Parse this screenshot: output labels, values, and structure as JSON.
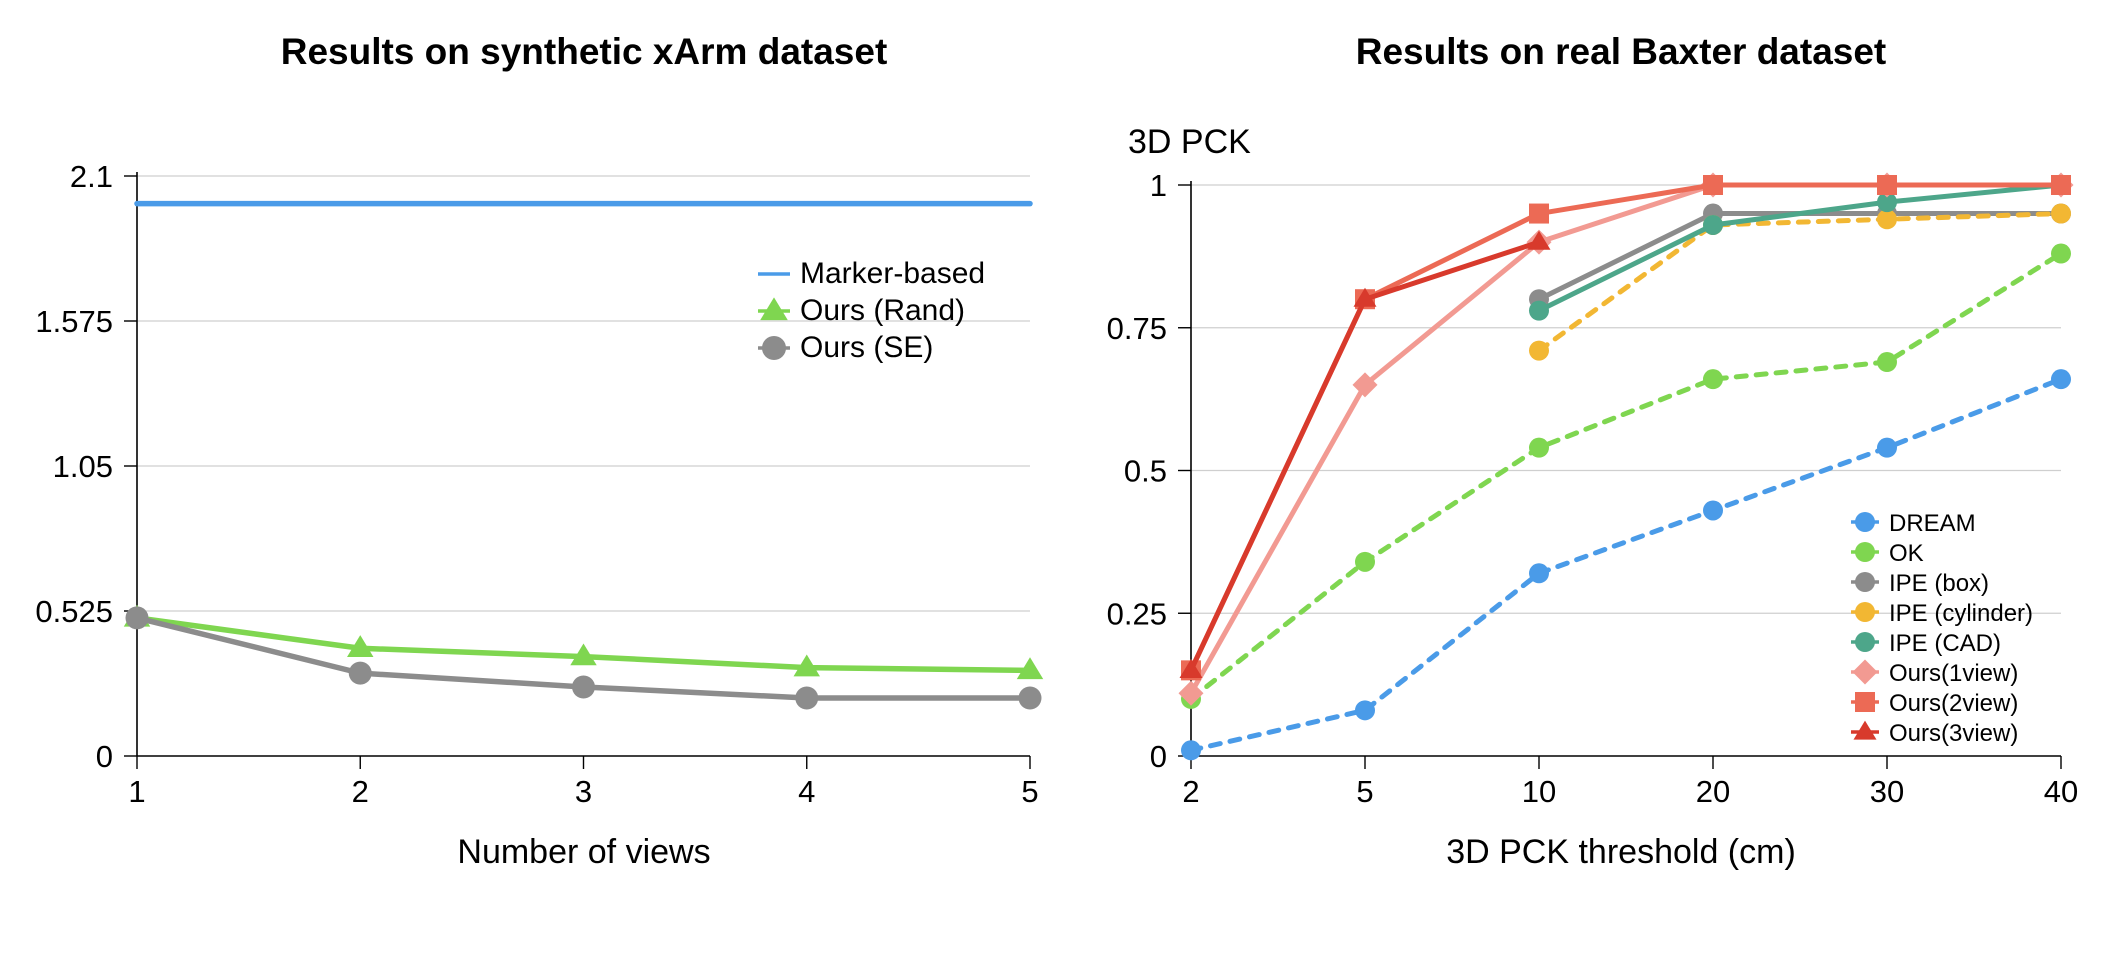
{
  "chart_data": [
    {
      "type": "line",
      "title": "Results on synthetic xArm dataset",
      "xlabel": "Number of views",
      "ylabel": "",
      "categories": [
        "1",
        "2",
        "3",
        "4",
        "5"
      ],
      "yticks": [
        "0",
        "0.525",
        "1.05",
        "1.575",
        "2.1"
      ],
      "ylim": [
        0,
        2.1
      ],
      "grid": true,
      "legend_position": "right",
      "series": [
        {
          "name": "Marker-based",
          "values": [
            2.0,
            2.0,
            2.0,
            2.0,
            2.0
          ],
          "color": "#4A9BE8",
          "marker": "none",
          "dashed": false
        },
        {
          "name": "Ours (Rand)",
          "values": [
            0.5,
            0.39,
            0.36,
            0.32,
            0.31
          ],
          "color": "#7FD650",
          "marker": "triangle",
          "dashed": false
        },
        {
          "name": "Ours (SE)",
          "values": [
            0.5,
            0.3,
            0.25,
            0.21,
            0.21
          ],
          "color": "#8C8C8C",
          "marker": "circle",
          "dashed": false
        }
      ]
    },
    {
      "type": "line",
      "title": "Results on real Baxter dataset",
      "xlabel": "3D PCK threshold (cm)",
      "ylabel": "3D PCK",
      "categories": [
        "2",
        "5",
        "10",
        "20",
        "30",
        "40"
      ],
      "yticks": [
        "0",
        "0.25",
        "0.5",
        "0.75",
        "1"
      ],
      "ylim": [
        0,
        1
      ],
      "grid": true,
      "legend_position": "bottom-right",
      "series": [
        {
          "name": "DREAM",
          "values": [
            0.01,
            0.08,
            0.32,
            0.43,
            0.54,
            0.66
          ],
          "color": "#4A9BE8",
          "marker": "circle",
          "dashed": true
        },
        {
          "name": "OK",
          "values": [
            0.1,
            0.34,
            0.54,
            0.66,
            0.69,
            0.88
          ],
          "color": "#7FD650",
          "marker": "circle",
          "dashed": true
        },
        {
          "name": "IPE (box)",
          "values": [
            null,
            null,
            0.8,
            0.95,
            0.95,
            0.95
          ],
          "color": "#8C8C8C",
          "marker": "circle",
          "dashed": false
        },
        {
          "name": "IPE (cylinder)",
          "values": [
            null,
            null,
            0.71,
            0.93,
            0.94,
            0.95
          ],
          "color": "#F2B733",
          "marker": "circle",
          "dashed": true
        },
        {
          "name": "IPE (CAD)",
          "values": [
            null,
            null,
            0.78,
            0.93,
            0.97,
            1.0
          ],
          "color": "#4DA68A",
          "marker": "circle",
          "dashed": false
        },
        {
          "name": "Ours(1view)",
          "values": [
            0.11,
            0.65,
            0.9,
            1.0,
            1.0,
            1.0
          ],
          "color": "#F29A92",
          "marker": "diamond",
          "dashed": false
        },
        {
          "name": "Ours(2view)",
          "values": [
            0.15,
            0.8,
            0.95,
            1.0,
            1.0,
            1.0
          ],
          "color": "#EC6A55",
          "marker": "square",
          "dashed": false
        },
        {
          "name": "Ours(3view)",
          "values": [
            0.15,
            0.8,
            0.9,
            null,
            null,
            null
          ],
          "color": "#D83A2C",
          "marker": "triangle",
          "dashed": false
        }
      ]
    }
  ]
}
